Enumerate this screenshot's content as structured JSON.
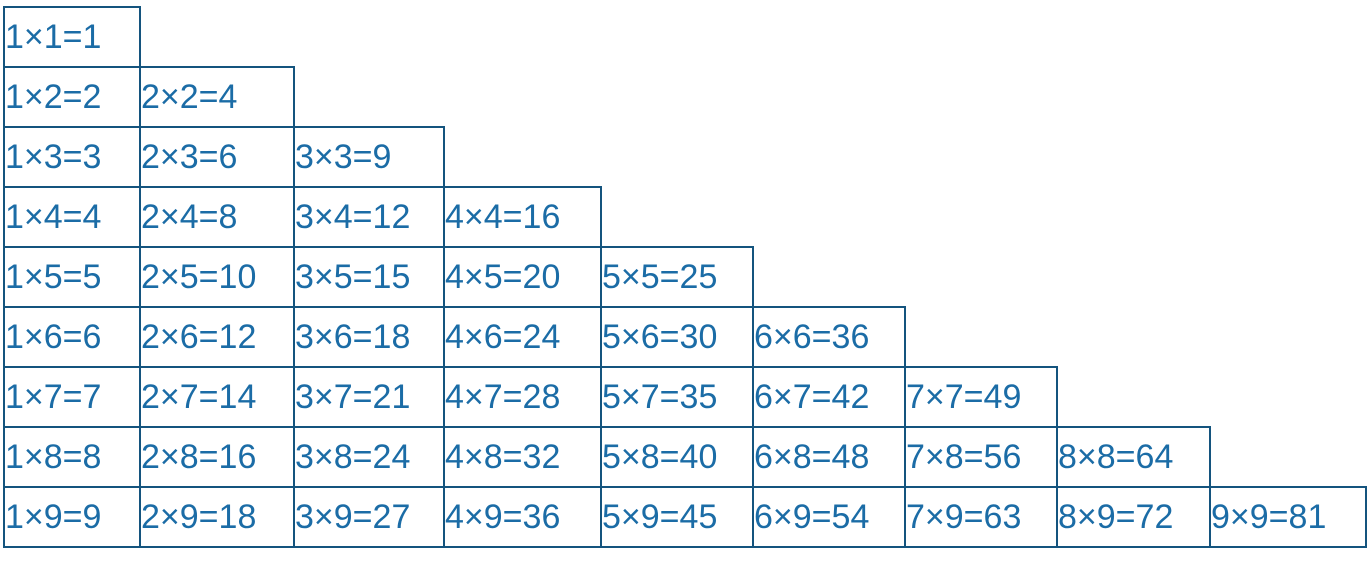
{
  "colors": {
    "border": "#14547E",
    "text": "#1B6CA6",
    "background": "#FFFFFF"
  },
  "table": {
    "rows": [
      [
        "1×1=1"
      ],
      [
        "1×2=2",
        "2×2=4"
      ],
      [
        "1×3=3",
        "2×3=6",
        "3×3=9"
      ],
      [
        "1×4=4",
        "2×4=8",
        "3×4=12",
        "4×4=16"
      ],
      [
        "1×5=5",
        "2×5=10",
        "3×5=15",
        "4×5=20",
        "5×5=25"
      ],
      [
        "1×6=6",
        "2×6=12",
        "3×6=18",
        "4×6=24",
        "5×6=30",
        "6×6=36"
      ],
      [
        "1×7=7",
        "2×7=14",
        "3×7=21",
        "4×7=28",
        "5×7=35",
        "6×7=42",
        "7×7=49"
      ],
      [
        "1×8=8",
        "2×8=16",
        "3×8=24",
        "4×8=32",
        "5×8=40",
        "6×8=48",
        "7×8=56",
        "8×8=64"
      ],
      [
        "1×9=9",
        "2×9=18",
        "3×9=27",
        "4×9=36",
        "5×9=45",
        "6×9=54",
        "7×9=63",
        "8×9=72",
        "9×9=81"
      ]
    ]
  }
}
